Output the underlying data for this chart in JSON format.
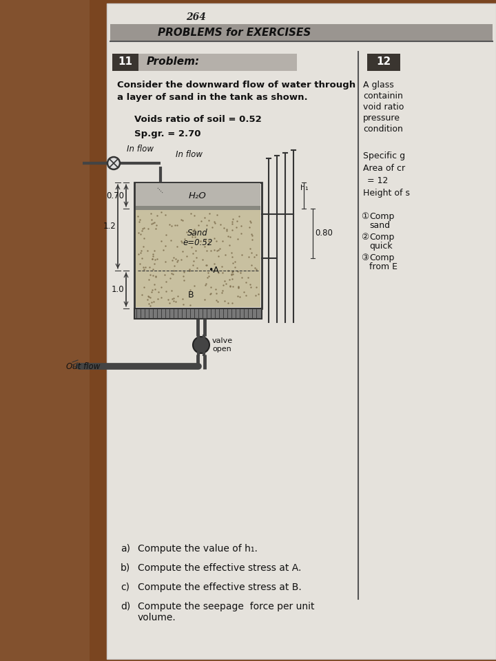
{
  "page_number": "264",
  "header": "PROBLEMS for EXERCISES",
  "problem_number": "11",
  "problem_label": "Problem:",
  "next_problem_number": "12",
  "problem_text_line1": "Consider the downward flow of water through",
  "problem_text_line2": "a layer of sand in the tank as shown.",
  "voids_ratio_text": "Voids ratio of soil = 0.52",
  "sp_gr_text": "Sp.gr. = 2.70",
  "inflow_label": "In flow",
  "h2o_label": "H₂O",
  "sand_label": "Sand",
  "e_label": "e=0.52",
  "point_a_label": "•A",
  "point_b_label": "B",
  "valve_label": "valve\nopen",
  "outflow_label": "Out flow",
  "dim_0_70": "0.70",
  "dim_1_2": "1.2",
  "dim_1_0": "1.0",
  "dim_0_80": "0.80",
  "h1_label": "h₁",
  "next_lines": [
    "A glass",
    "containin",
    "void ratio",
    "pressure",
    "condition"
  ],
  "next_specific_g": "Specific g",
  "next_area": "Area of cr",
  "next_eq12": "= 12",
  "next_height": "Height of s",
  "comp_items": [
    [
      "①",
      "Comp",
      "sand"
    ],
    [
      "②",
      "Comp",
      "quick"
    ],
    [
      "③",
      "Comp",
      "from E"
    ]
  ],
  "questions": [
    [
      "a)",
      "Compute the value of h₁."
    ],
    [
      "b)",
      "Compute the effective stress at A."
    ],
    [
      "c)",
      "Compute the effective stress at B."
    ],
    [
      "d)",
      "Compute the seepage  force per unit\nvolume."
    ]
  ],
  "wood_color": "#7a4520",
  "wood_color2": "#8b5e3c",
  "page_bg": "#e5e2dc",
  "header_bg": "#9a9590",
  "problem_num_bg": "#3a3530",
  "problem_label_bg": "#b5b0aa",
  "next_num_bg": "#3a3530",
  "water_color": "#b8b5ae",
  "sand_color": "#c8c0a0",
  "grille_color": "#787878",
  "tank_bg": "#e0ddd8"
}
